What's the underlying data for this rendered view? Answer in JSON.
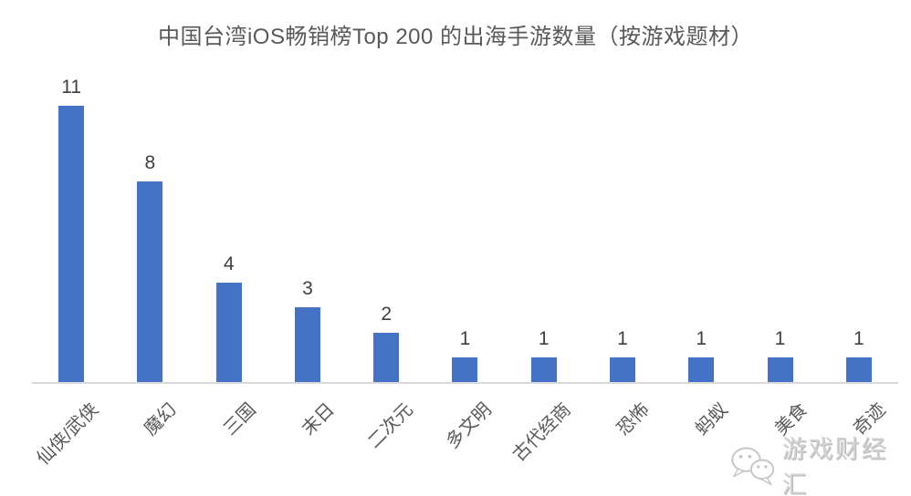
{
  "chart_data": {
    "type": "bar",
    "title": "中国台湾iOS畅销榜Top 200 的出海手游数量（按游戏题材）",
    "categories": [
      "仙侠/武侠",
      "魔幻",
      "三国",
      "末日",
      "二次元",
      "多文明",
      "古代经商",
      "恐怖",
      "蚂蚁",
      "美食",
      "奇迹"
    ],
    "values": [
      11,
      8,
      4,
      3,
      2,
      1,
      1,
      1,
      1,
      1,
      1
    ],
    "data_labels": [
      "11",
      "8",
      "4",
      "3",
      "2",
      "1",
      "1",
      "1",
      "1",
      "1",
      "1"
    ],
    "xlabel": "",
    "ylabel": "",
    "ylim": [
      0,
      12
    ],
    "grid": false,
    "legend": null,
    "x_axis_line": true,
    "y_axis_line": false,
    "category_label_rotation_deg": -45
  },
  "watermark": {
    "text": "游戏财经汇",
    "icon": "wechat-icon"
  },
  "colors": {
    "bar": "#4472C4",
    "title": "#595959",
    "data_label": "#404040",
    "category_label": "#595959",
    "axis_line": "#D9D9D9",
    "watermark": "#D2D2D2",
    "background": "#FFFFFF"
  }
}
